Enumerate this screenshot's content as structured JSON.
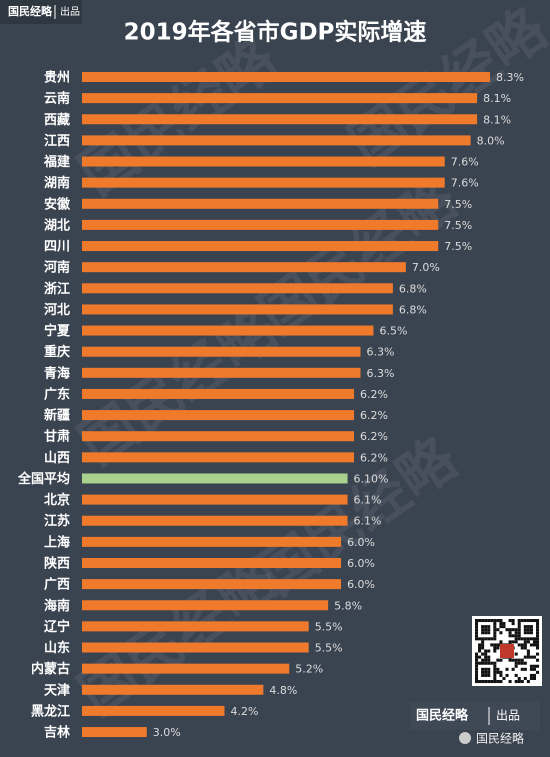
{
  "chart_data": {
    "type": "bar",
    "orientation": "horizontal",
    "title": "2019年各省市GDP实际增速",
    "categories": [
      "贵州",
      "云南",
      "西藏",
      "江西",
      "福建",
      "湖南",
      "安徽",
      "湖北",
      "四川",
      "河南",
      "浙江",
      "河北",
      "宁夏",
      "重庆",
      "青海",
      "广东",
      "新疆",
      "甘肃",
      "山西",
      "全国平均",
      "北京",
      "江苏",
      "上海",
      "陕西",
      "广西",
      "海南",
      "辽宁",
      "山东",
      "内蒙古",
      "天津",
      "黑龙江",
      "吉林"
    ],
    "values": [
      8.3,
      8.1,
      8.1,
      8.0,
      7.6,
      7.6,
      7.5,
      7.5,
      7.5,
      7.0,
      6.8,
      6.8,
      6.5,
      6.3,
      6.3,
      6.2,
      6.2,
      6.2,
      6.2,
      6.1,
      6.1,
      6.1,
      6.0,
      6.0,
      6.0,
      5.8,
      5.5,
      5.5,
      5.2,
      4.8,
      4.2,
      3.0
    ],
    "value_labels": [
      "8.3%",
      "8.1%",
      "8.1%",
      "8.0%",
      "7.6%",
      "7.6%",
      "7.5%",
      "7.5%",
      "7.5%",
      "7.0%",
      "6.8%",
      "6.8%",
      "6.5%",
      "6.3%",
      "6.3%",
      "6.2%",
      "6.2%",
      "6.2%",
      "6.2%",
      "6.10%",
      "6.1%",
      "6.1%",
      "6.0%",
      "6.0%",
      "6.0%",
      "5.8%",
      "5.5%",
      "5.5%",
      "5.2%",
      "4.8%",
      "4.2%",
      "3.0%"
    ],
    "colors": [
      "#f07a2c",
      "#f07a2c",
      "#f07a2c",
      "#f07a2c",
      "#f07a2c",
      "#f07a2c",
      "#f07a2c",
      "#f07a2c",
      "#f07a2c",
      "#f07a2c",
      "#f07a2c",
      "#f07a2c",
      "#f07a2c",
      "#f07a2c",
      "#f07a2c",
      "#f07a2c",
      "#f07a2c",
      "#f07a2c",
      "#f07a2c",
      "#a9d18e",
      "#f07a2c",
      "#f07a2c",
      "#f07a2c",
      "#f07a2c",
      "#f07a2c",
      "#f07a2c",
      "#f07a2c",
      "#f07a2c",
      "#f07a2c",
      "#f07a2c",
      "#f07a2c",
      "#f07a2c"
    ],
    "xlim": [
      2,
      8.5
    ]
  },
  "brand": {
    "header_name": "国民经略",
    "header_tag": "出品",
    "footer_name": "国民经略",
    "footer_tag": "出品",
    "wechat": "国民经略",
    "watermark": "国民经略"
  }
}
